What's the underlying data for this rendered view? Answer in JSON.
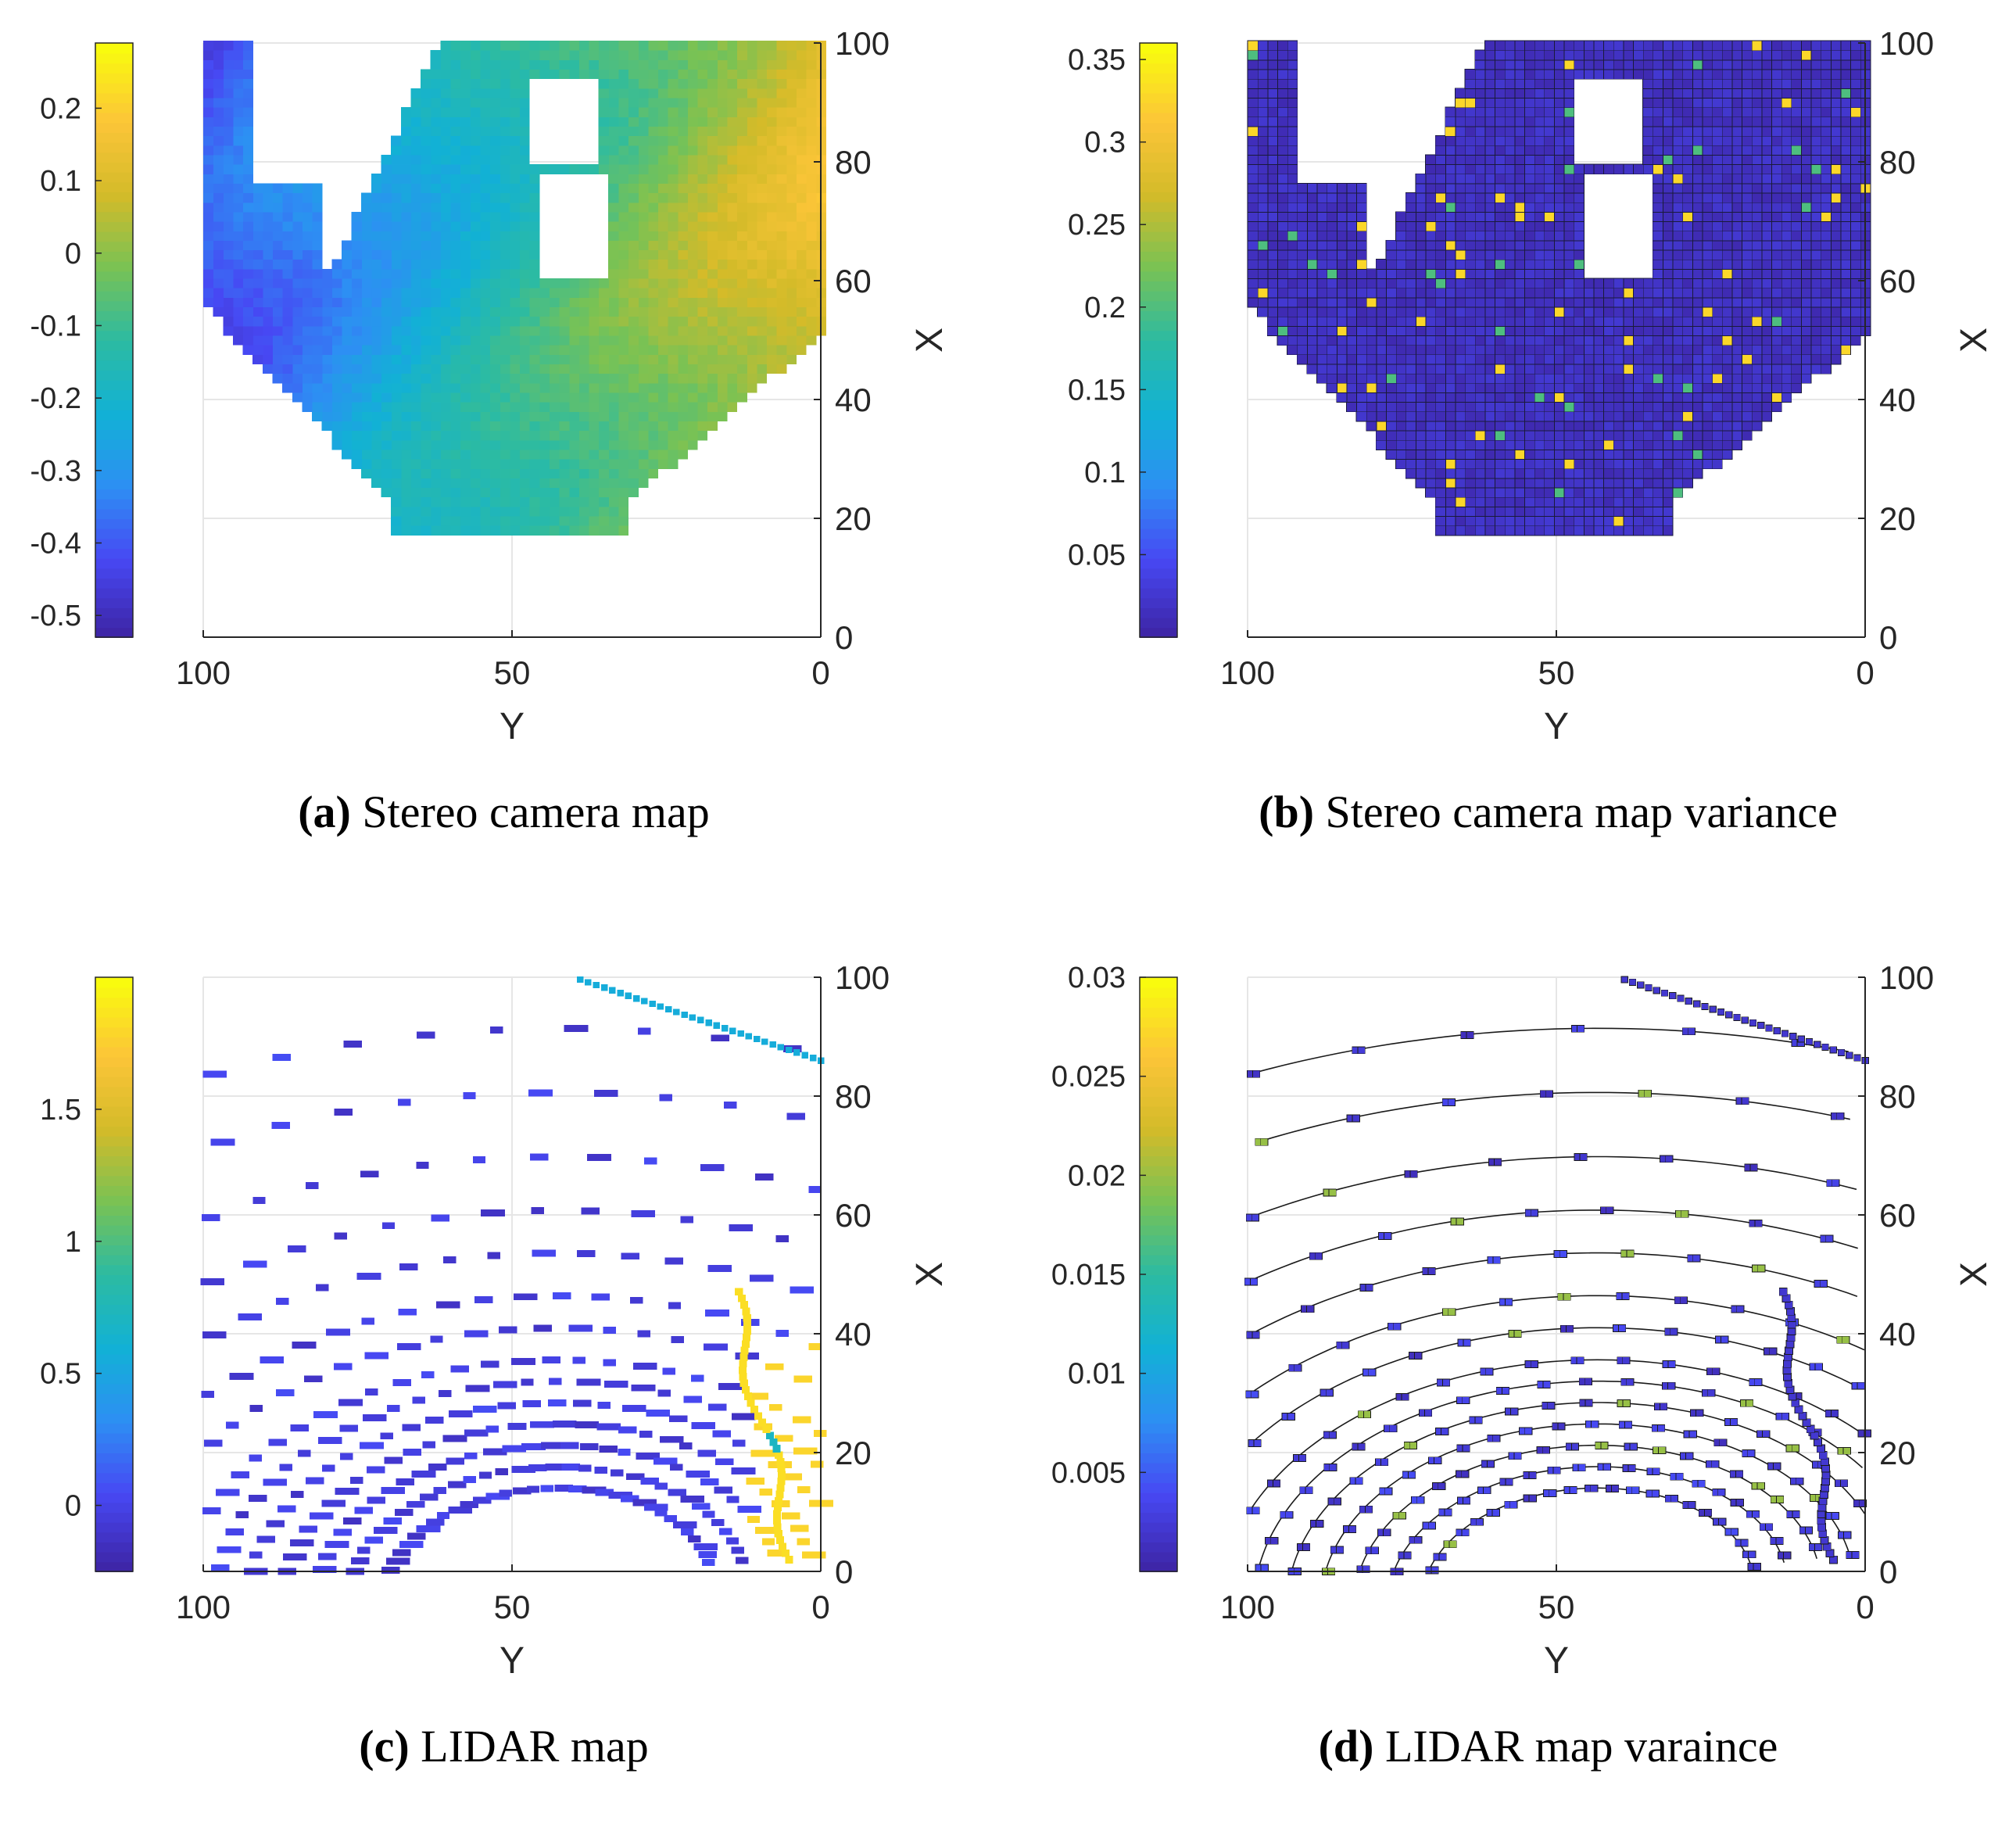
{
  "colors": {
    "parula": [
      "#3e26a8",
      "#4748f3",
      "#2d8ff3",
      "#12b1d5",
      "#2cbba2",
      "#79c254",
      "#d4bb29",
      "#fcc538",
      "#f9fb0e"
    ],
    "background": "#ffffff",
    "grid": "#e6e6e6",
    "axis": "#262626"
  },
  "chart_data": [
    {
      "id": "a",
      "type": "heatmap",
      "caption_letter": "(a)",
      "caption_text": "Stereo camera map",
      "xlabel": "Y",
      "ylabel": "X",
      "xlim": [
        100,
        0
      ],
      "ylim": [
        0,
        100
      ],
      "x_ticks": [
        "100",
        "50",
        "0"
      ],
      "y_ticks": [
        "0",
        "20",
        "40",
        "60",
        "80",
        "100"
      ],
      "colorbar": {
        "clim": [
          -0.53,
          0.29
        ],
        "ticks": [
          -0.5,
          -0.4,
          -0.3,
          -0.2,
          -0.1,
          0,
          0.1,
          0.2
        ],
        "tick_labels": [
          "-0.5",
          "-0.4",
          "-0.3",
          "-0.2",
          "-0.1",
          "0",
          "0.1",
          "0.2"
        ]
      },
      "coverage": "fan",
      "gaps": [
        [
          78,
          92,
          76,
          100
        ],
        [
          34,
          46,
          60,
          78
        ],
        [
          36,
          48,
          80,
          94
        ]
      ],
      "field": "gradient",
      "value_range": [
        -0.44,
        0.22
      ]
    },
    {
      "id": "b",
      "type": "heatmap",
      "caption_letter": "(b)",
      "caption_text": "Stereo camera map variance",
      "xlabel": "Y",
      "ylabel": "X",
      "xlim": [
        100,
        0
      ],
      "ylim": [
        0,
        100
      ],
      "x_ticks": [
        "100",
        "50",
        "0"
      ],
      "y_ticks": [
        "0",
        "20",
        "40",
        "60",
        "80",
        "100"
      ],
      "colorbar": {
        "clim": [
          0.0,
          0.36
        ],
        "ticks": [
          0.05,
          0.1,
          0.15,
          0.2,
          0.25,
          0.3,
          0.35
        ],
        "tick_labels": [
          "0.05",
          "0.1",
          "0.15",
          "0.2",
          "0.25",
          "0.3",
          "0.35"
        ]
      },
      "coverage": "fan",
      "gaps": [
        [
          78,
          92,
          76,
          100
        ],
        [
          34,
          46,
          60,
          78
        ],
        [
          36,
          48,
          80,
          94
        ]
      ],
      "field": "low_with_speckle",
      "value_range": [
        0.0,
        0.35
      ]
    },
    {
      "id": "c",
      "type": "heatmap",
      "caption_letter": "(c)",
      "caption_text": "LIDAR map",
      "xlabel": "Y",
      "ylabel": "X",
      "xlim": [
        100,
        0
      ],
      "ylim": [
        0,
        100
      ],
      "x_ticks": [
        "100",
        "50",
        "0"
      ],
      "y_ticks": [
        "0",
        "20",
        "40",
        "60",
        "80",
        "100"
      ],
      "colorbar": {
        "clim": [
          -0.25,
          2.0
        ],
        "ticks": [
          0,
          0.5,
          1,
          1.5
        ],
        "tick_labels": [
          "0",
          "0.5",
          "1",
          "1.5"
        ]
      },
      "coverage": "scan_rings",
      "field": "lidar",
      "value_range": [
        -0.2,
        1.9
      ]
    },
    {
      "id": "d",
      "type": "heatmap",
      "caption_letter": "(d)",
      "caption_text": "LIDAR map varaince",
      "xlabel": "Y",
      "ylabel": "X",
      "xlim": [
        100,
        0
      ],
      "ylim": [
        0,
        100
      ],
      "x_ticks": [
        "100",
        "50",
        "0"
      ],
      "y_ticks": [
        "0",
        "20",
        "40",
        "60",
        "80",
        "100"
      ],
      "colorbar": {
        "clim": [
          0.0,
          0.03
        ],
        "ticks": [
          0.005,
          0.01,
          0.015,
          0.02,
          0.025,
          0.03
        ],
        "tick_labels": [
          "0.005",
          "0.01",
          "0.015",
          "0.02",
          "0.025",
          "0.03"
        ]
      },
      "coverage": "scan_rings_outlined",
      "field": "lidar_variance",
      "value_range": [
        0.0,
        0.03
      ]
    }
  ]
}
